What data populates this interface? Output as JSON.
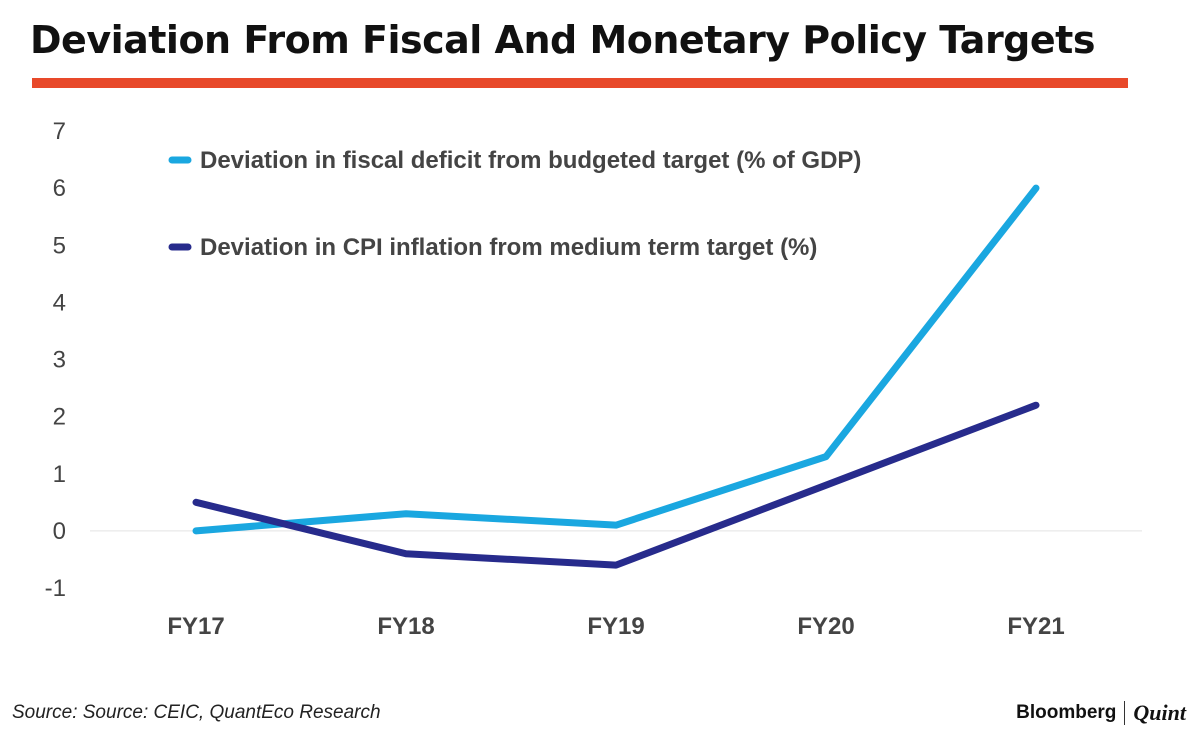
{
  "title": "Deviation From Fiscal And Monetary Policy Targets",
  "colors": {
    "accent_rule": "#e8492a",
    "fiscal": "#1aa7e0",
    "cpi": "#272b8c"
  },
  "chart_data": {
    "type": "line",
    "title": "Deviation From Fiscal And Monetary Policy Targets",
    "xlabel": "",
    "ylabel": "",
    "categories": [
      "FY17",
      "FY18",
      "FY19",
      "FY20",
      "FY21"
    ],
    "y_ticks": [
      "7",
      "6",
      "5",
      "4",
      "3",
      "2",
      "1",
      "0",
      "-1"
    ],
    "ylim": [
      -1,
      7
    ],
    "grid": false,
    "zero_line": true,
    "legend_position": "top-left",
    "series": [
      {
        "name": "Deviation in fiscal deficit from budgeted target (% of GDP)",
        "color": "#1aa7e0",
        "values": [
          0,
          0.3,
          0.1,
          1.3,
          6.0
        ]
      },
      {
        "name": "Deviation in CPI inflation from medium term target (%)",
        "color": "#272b8c",
        "values": [
          0.5,
          -0.4,
          -0.6,
          0.8,
          2.2
        ]
      }
    ]
  },
  "footer": {
    "source": "Source: Source: CEIC, QuantEco Research",
    "brand_left": "Bloomberg",
    "brand_right": "Quint"
  }
}
